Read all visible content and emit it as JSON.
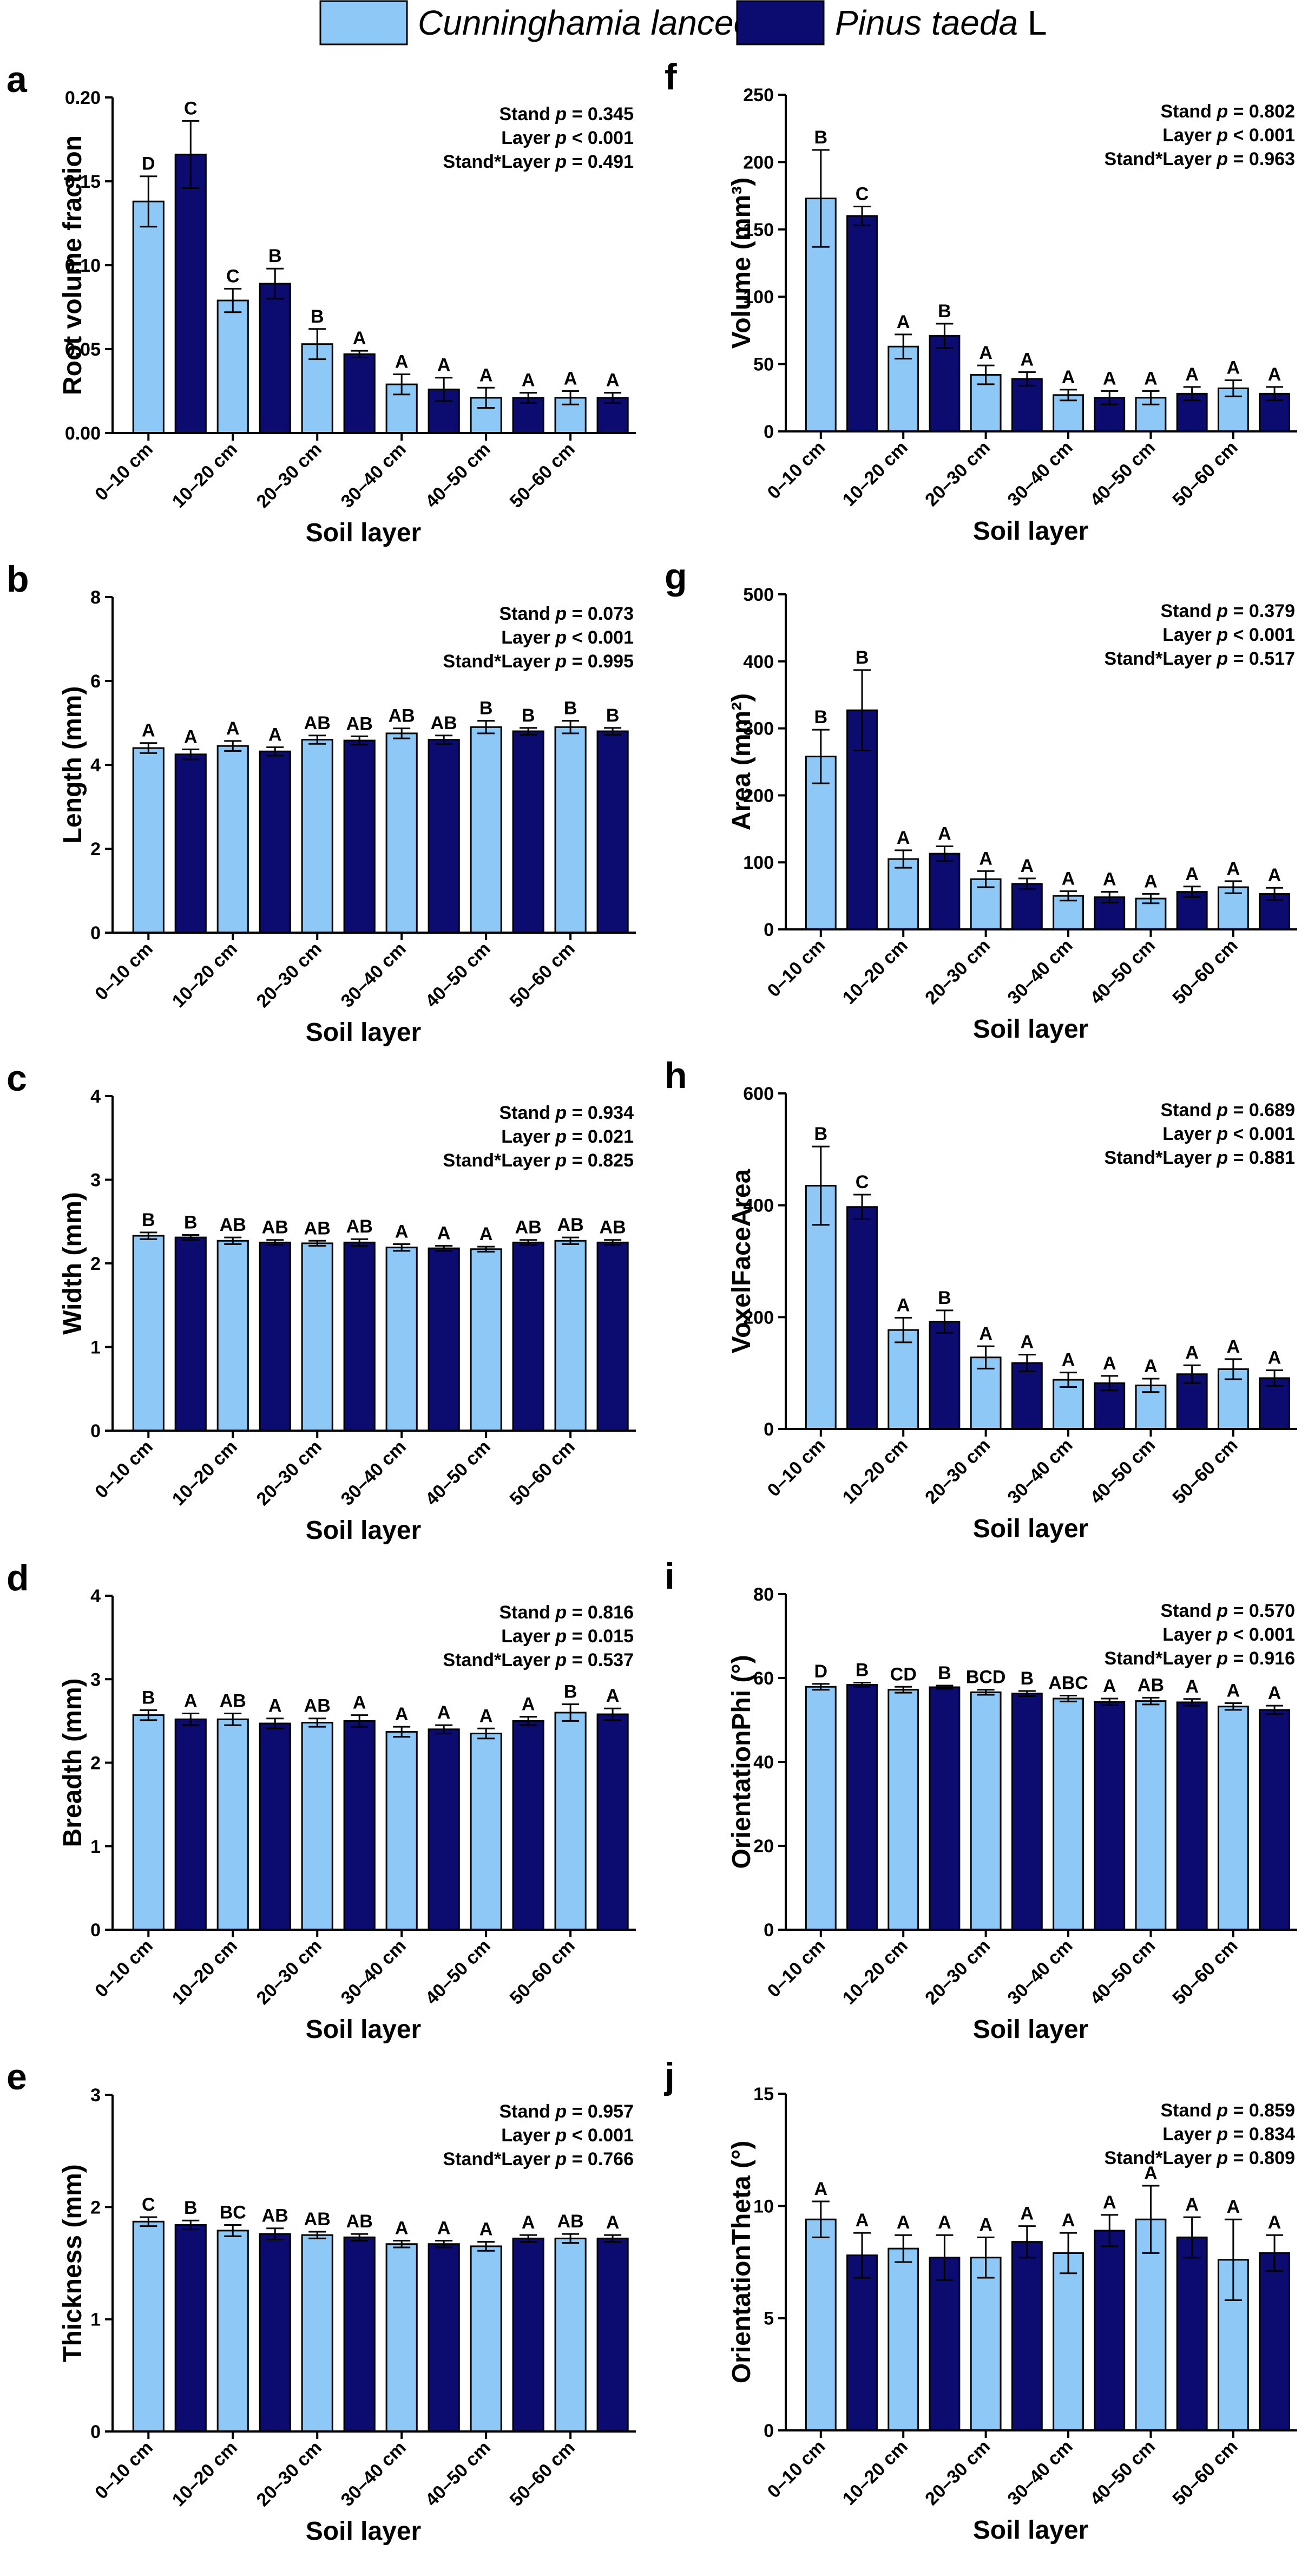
{
  "colors": {
    "cunninghamia": "#8ec8f7",
    "pinus": "#0b0b70",
    "axis": "#000000"
  },
  "legend": [
    {
      "label": "Cunninghamia lanceolata",
      "italic": true,
      "color": "#8ec8f7"
    },
    {
      "label": "Pinus taeda",
      "suffix": " L",
      "italic": true,
      "color": "#0b0b70"
    }
  ],
  "chart_data": [
    {
      "panel": "a",
      "type": "bar",
      "ylabel": "Root volume fraction",
      "xlabel": "Soil layer",
      "categories": [
        "0–10 cm",
        "10–20 cm",
        "20–30 cm",
        "30–40 cm",
        "40–50 cm",
        "50–60 cm"
      ],
      "ylim": [
        0,
        0.2
      ],
      "yticks": [
        0,
        0.05,
        0.1,
        0.15,
        0.2
      ],
      "yticklabels": [
        "0.00",
        "0.05",
        "0.10",
        "0.15",
        "0.20"
      ],
      "series": [
        {
          "name": "Cunninghamia lanceolata",
          "values": [
            0.138,
            0.079,
            0.053,
            0.029,
            0.021,
            0.021
          ],
          "errors": [
            0.015,
            0.007,
            0.009,
            0.006,
            0.006,
            0.004
          ],
          "letters": [
            "D",
            "C",
            "B",
            "A",
            "A",
            "A"
          ]
        },
        {
          "name": "Pinus taeda L",
          "values": [
            0.166,
            0.089,
            0.047,
            0.026,
            0.021,
            0.021
          ],
          "errors": [
            0.02,
            0.009,
            0.002,
            0.007,
            0.003,
            0.003
          ],
          "letters": [
            "C",
            "B",
            "A",
            "A",
            "A",
            "A"
          ]
        }
      ],
      "stats": [
        {
          "term": "Stand",
          "p": "p",
          "op": " = ",
          "value": "0.345"
        },
        {
          "term": "Layer",
          "p": "p",
          "op": " < ",
          "value": "0.001"
        },
        {
          "term": "Stand*Layer",
          "p": "p",
          "op": " = ",
          "value": "0.491"
        }
      ]
    },
    {
      "panel": "b",
      "type": "bar",
      "ylabel": "Length (mm)",
      "xlabel": "Soil layer",
      "categories": [
        "0–10 cm",
        "10–20 cm",
        "20–30 cm",
        "30–40 cm",
        "40–50 cm",
        "50–60 cm"
      ],
      "ylim": [
        0,
        8
      ],
      "yticks": [
        0,
        2,
        4,
        6,
        8
      ],
      "yticklabels": [
        "0",
        "2",
        "4",
        "6",
        "8"
      ],
      "series": [
        {
          "name": "Cunninghamia lanceolata",
          "values": [
            4.4,
            4.45,
            4.6,
            4.75,
            4.9,
            4.9
          ],
          "errors": [
            0.12,
            0.12,
            0.1,
            0.12,
            0.15,
            0.15
          ],
          "letters": [
            "A",
            "A",
            "AB",
            "AB",
            "B",
            "B"
          ]
        },
        {
          "name": "Pinus taeda L",
          "values": [
            4.25,
            4.32,
            4.58,
            4.6,
            4.8,
            4.8
          ],
          "errors": [
            0.12,
            0.1,
            0.1,
            0.1,
            0.08,
            0.08
          ],
          "letters": [
            "A",
            "A",
            "AB",
            "AB",
            "B",
            "B"
          ]
        }
      ],
      "stats": [
        {
          "term": "Stand",
          "p": "p",
          "op": " = ",
          "value": "0.073"
        },
        {
          "term": "Layer",
          "p": "p",
          "op": " < ",
          "value": "0.001"
        },
        {
          "term": "Stand*Layer",
          "p": "p",
          "op": " = ",
          "value": "0.995"
        }
      ]
    },
    {
      "panel": "c",
      "type": "bar",
      "ylabel": "Width (mm)",
      "xlabel": "Soil layer",
      "categories": [
        "0–10 cm",
        "10–20 cm",
        "20–30 cm",
        "30–40 cm",
        "40–50 cm",
        "50–60 cm"
      ],
      "ylim": [
        0,
        4
      ],
      "yticks": [
        0,
        1,
        2,
        3,
        4
      ],
      "yticklabels": [
        "0",
        "1",
        "2",
        "3",
        "4"
      ],
      "series": [
        {
          "name": "Cunninghamia lanceolata",
          "values": [
            2.33,
            2.27,
            2.24,
            2.19,
            2.17,
            2.27
          ],
          "errors": [
            0.04,
            0.04,
            0.03,
            0.04,
            0.03,
            0.04
          ],
          "letters": [
            "B",
            "AB",
            "AB",
            "A",
            "A",
            "AB"
          ]
        },
        {
          "name": "Pinus taeda L",
          "values": [
            2.31,
            2.25,
            2.25,
            2.18,
            2.25,
            2.25
          ],
          "errors": [
            0.03,
            0.03,
            0.04,
            0.03,
            0.03,
            0.03
          ],
          "letters": [
            "B",
            "AB",
            "AB",
            "A",
            "AB",
            "AB"
          ]
        }
      ],
      "stats": [
        {
          "term": "Stand",
          "p": "p",
          "op": " = ",
          "value": "0.934"
        },
        {
          "term": "Layer",
          "p": "p",
          "op": " = ",
          "value": "0.021"
        },
        {
          "term": "Stand*Layer",
          "p": "p",
          "op": " = ",
          "value": "0.825"
        }
      ]
    },
    {
      "panel": "d",
      "type": "bar",
      "ylabel": "Breadth (mm)",
      "xlabel": "Soil layer",
      "categories": [
        "0–10 cm",
        "10–20 cm",
        "20–30 cm",
        "30–40 cm",
        "40–50 cm",
        "50–60 cm"
      ],
      "ylim": [
        0,
        4
      ],
      "yticks": [
        0,
        1,
        2,
        3,
        4
      ],
      "yticklabels": [
        "0",
        "1",
        "2",
        "3",
        "4"
      ],
      "series": [
        {
          "name": "Cunninghamia lanceolata",
          "values": [
            2.57,
            2.52,
            2.48,
            2.37,
            2.35,
            2.6
          ],
          "errors": [
            0.06,
            0.07,
            0.05,
            0.06,
            0.06,
            0.1
          ],
          "letters": [
            "B",
            "AB",
            "AB",
            "A",
            "A",
            "B"
          ]
        },
        {
          "name": "Pinus taeda L",
          "values": [
            2.52,
            2.47,
            2.5,
            2.4,
            2.5,
            2.58
          ],
          "errors": [
            0.07,
            0.06,
            0.07,
            0.05,
            0.05,
            0.07
          ],
          "letters": [
            "A",
            "A",
            "A",
            "A",
            "A",
            "A"
          ]
        }
      ],
      "stats": [
        {
          "term": "Stand",
          "p": "p",
          "op": " = ",
          "value": "0.816"
        },
        {
          "term": "Layer",
          "p": "p",
          "op": " = ",
          "value": "0.015"
        },
        {
          "term": "Stand*Layer",
          "p": "p",
          "op": " = ",
          "value": "0.537"
        }
      ]
    },
    {
      "panel": "e",
      "type": "bar",
      "ylabel": "Thickness (mm)",
      "xlabel": "Soil layer",
      "categories": [
        "0–10 cm",
        "10–20 cm",
        "20–30 cm",
        "30–40 cm",
        "40–50 cm",
        "50–60 cm"
      ],
      "ylim": [
        0,
        3
      ],
      "yticks": [
        0,
        1,
        2,
        3
      ],
      "yticklabels": [
        "0",
        "1",
        "2",
        "3"
      ],
      "series": [
        {
          "name": "Cunninghamia lanceolata",
          "values": [
            1.87,
            1.79,
            1.75,
            1.67,
            1.65,
            1.72
          ],
          "errors": [
            0.04,
            0.05,
            0.03,
            0.03,
            0.04,
            0.04
          ],
          "letters": [
            "C",
            "BC",
            "AB",
            "A",
            "A",
            "AB"
          ]
        },
        {
          "name": "Pinus taeda L",
          "values": [
            1.84,
            1.76,
            1.73,
            1.67,
            1.72,
            1.72
          ],
          "errors": [
            0.04,
            0.05,
            0.03,
            0.03,
            0.03,
            0.03
          ],
          "letters": [
            "B",
            "AB",
            "AB",
            "A",
            "A",
            "A"
          ]
        }
      ],
      "stats": [
        {
          "term": "Stand",
          "p": "p",
          "op": " = ",
          "value": "0.957"
        },
        {
          "term": "Layer",
          "p": "p",
          "op": " < ",
          "value": "0.001"
        },
        {
          "term": "Stand*Layer",
          "p": "p",
          "op": " = ",
          "value": "0.766"
        }
      ]
    },
    {
      "panel": "f",
      "type": "bar",
      "ylabel": "Volume (mm³)",
      "xlabel": "Soil layer",
      "categories": [
        "0–10 cm",
        "10–20 cm",
        "20–30 cm",
        "30–40 cm",
        "40–50 cm",
        "50–60 cm"
      ],
      "ylim": [
        0,
        250
      ],
      "yticks": [
        0,
        50,
        100,
        150,
        200,
        250
      ],
      "yticklabels": [
        "0",
        "50",
        "100",
        "150",
        "200",
        "250"
      ],
      "series": [
        {
          "name": "Cunninghamia lanceolata",
          "values": [
            173,
            63,
            42,
            27,
            25,
            32
          ],
          "errors": [
            36,
            9,
            7,
            4,
            5,
            6
          ],
          "letters": [
            "B",
            "A",
            "A",
            "A",
            "A",
            "A"
          ]
        },
        {
          "name": "Pinus taeda L",
          "values": [
            160,
            71,
            39,
            25,
            28,
            28
          ],
          "errors": [
            7,
            9,
            5,
            5,
            5,
            5
          ],
          "letters": [
            "C",
            "B",
            "A",
            "A",
            "A",
            "A"
          ]
        }
      ],
      "stats": [
        {
          "term": "Stand",
          "p": "p",
          "op": " = ",
          "value": "0.802"
        },
        {
          "term": "Layer",
          "p": "p",
          "op": " < ",
          "value": "0.001"
        },
        {
          "term": "Stand*Layer",
          "p": "p",
          "op": " = ",
          "value": "0.963"
        }
      ]
    },
    {
      "panel": "g",
      "type": "bar",
      "ylabel": "Area (mm²)",
      "xlabel": "Soil layer",
      "categories": [
        "0–10 cm",
        "10–20 cm",
        "20–30 cm",
        "30–40 cm",
        "40–50 cm",
        "50–60 cm"
      ],
      "ylim": [
        0,
        500
      ],
      "yticks": [
        0,
        100,
        200,
        300,
        400,
        500
      ],
      "yticklabels": [
        "0",
        "100",
        "200",
        "300",
        "400",
        "500"
      ],
      "series": [
        {
          "name": "Cunninghamia lanceolata",
          "values": [
            258,
            105,
            75,
            50,
            46,
            63
          ],
          "errors": [
            40,
            13,
            12,
            7,
            7,
            9
          ],
          "letters": [
            "B",
            "A",
            "A",
            "A",
            "A",
            "A"
          ]
        },
        {
          "name": "Pinus taeda L",
          "values": [
            327,
            113,
            68,
            48,
            56,
            53
          ],
          "errors": [
            60,
            11,
            8,
            8,
            8,
            9
          ],
          "letters": [
            "B",
            "A",
            "A",
            "A",
            "A",
            "A"
          ]
        }
      ],
      "stats": [
        {
          "term": "Stand",
          "p": "p",
          "op": " = ",
          "value": "0.379"
        },
        {
          "term": "Layer",
          "p": "p",
          "op": " < ",
          "value": "0.001"
        },
        {
          "term": "Stand*Layer",
          "p": "p",
          "op": " = ",
          "value": "0.517"
        }
      ]
    },
    {
      "panel": "h",
      "type": "bar",
      "ylabel": "VoxelFaceArea",
      "xlabel": "Soil layer",
      "categories": [
        "0–10 cm",
        "10–20 cm",
        "20–30 cm",
        "30–40 cm",
        "40–50 cm",
        "50–60 cm"
      ],
      "ylim": [
        0,
        600
      ],
      "yticks": [
        0,
        200,
        400,
        600
      ],
      "yticklabels": [
        "0",
        "200",
        "400",
        "600"
      ],
      "series": [
        {
          "name": "Cunninghamia lanceolata",
          "values": [
            435,
            177,
            128,
            88,
            78,
            107
          ],
          "errors": [
            70,
            22,
            20,
            13,
            12,
            18
          ],
          "letters": [
            "B",
            "A",
            "A",
            "A",
            "A",
            "A"
          ]
        },
        {
          "name": "Pinus taeda L",
          "values": [
            397,
            192,
            118,
            82,
            98,
            91
          ],
          "errors": [
            22,
            20,
            15,
            13,
            16,
            14
          ],
          "letters": [
            "C",
            "B",
            "A",
            "A",
            "A",
            "A"
          ]
        }
      ],
      "stats": [
        {
          "term": "Stand",
          "p": "p",
          "op": " = ",
          "value": "0.689"
        },
        {
          "term": "Layer",
          "p": "p",
          "op": " < ",
          "value": "0.001"
        },
        {
          "term": "Stand*Layer",
          "p": "p",
          "op": " = ",
          "value": "0.881"
        }
      ]
    },
    {
      "panel": "i",
      "type": "bar",
      "ylabel": "OrientationPhi (°)",
      "xlabel": "Soil layer",
      "categories": [
        "0–10 cm",
        "10–20 cm",
        "20–30 cm",
        "30–40 cm",
        "40–50 cm",
        "50–60 cm"
      ],
      "ylim": [
        0,
        80
      ],
      "yticks": [
        0,
        20,
        40,
        60,
        80
      ],
      "yticklabels": [
        "0",
        "20",
        "40",
        "60",
        "80"
      ],
      "series": [
        {
          "name": "Cunninghamia lanceolata",
          "values": [
            57.9,
            57.2,
            56.6,
            55.1,
            54.5,
            53.2
          ],
          "errors": [
            0.7,
            0.7,
            0.6,
            0.7,
            0.8,
            0.8
          ],
          "letters": [
            "D",
            "CD",
            "BCD",
            "ABC",
            "AB",
            "A"
          ]
        },
        {
          "name": "Pinus taeda L",
          "values": [
            58.4,
            57.8,
            56.3,
            54.3,
            54.2,
            52.4
          ],
          "errors": [
            0.5,
            0.4,
            0.6,
            0.8,
            0.8,
            1.0
          ],
          "letters": [
            "B",
            "B",
            "B",
            "A",
            "A",
            "A"
          ]
        }
      ],
      "stats": [
        {
          "term": "Stand",
          "p": "p",
          "op": " = ",
          "value": "0.570"
        },
        {
          "term": "Layer",
          "p": "p",
          "op": " < ",
          "value": "0.001"
        },
        {
          "term": "Stand*Layer",
          "p": "p",
          "op": " = ",
          "value": "0.916"
        }
      ]
    },
    {
      "panel": "j",
      "type": "bar",
      "ylabel": "OrientationTheta (°)",
      "xlabel": "Soil layer",
      "categories": [
        "0–10 cm",
        "10–20 cm",
        "20–30 cm",
        "30–40 cm",
        "40–50 cm",
        "50–60 cm"
      ],
      "ylim": [
        0,
        15
      ],
      "yticks": [
        0,
        5,
        10,
        15
      ],
      "yticklabels": [
        "0",
        "5",
        "10",
        "15"
      ],
      "series": [
        {
          "name": "Cunninghamia lanceolata",
          "values": [
            9.4,
            8.1,
            7.7,
            7.9,
            9.4,
            7.6
          ],
          "errors": [
            0.8,
            0.6,
            0.9,
            0.9,
            1.5,
            1.8
          ],
          "letters": [
            "A",
            "A",
            "A",
            "A",
            "A",
            "A"
          ]
        },
        {
          "name": "Pinus taeda L",
          "values": [
            7.8,
            7.7,
            8.4,
            8.9,
            8.6,
            7.9
          ],
          "errors": [
            1.0,
            1.0,
            0.7,
            0.7,
            0.9,
            0.8
          ],
          "letters": [
            "A",
            "A",
            "A",
            "A",
            "A",
            "A"
          ]
        }
      ],
      "stats": [
        {
          "term": "Stand",
          "p": "p",
          "op": " = ",
          "value": "0.859"
        },
        {
          "term": "Layer",
          "p": "p",
          "op": " = ",
          "value": "0.834"
        },
        {
          "term": "Stand*Layer",
          "p": "p",
          "op": " = ",
          "value": "0.809"
        }
      ]
    }
  ]
}
